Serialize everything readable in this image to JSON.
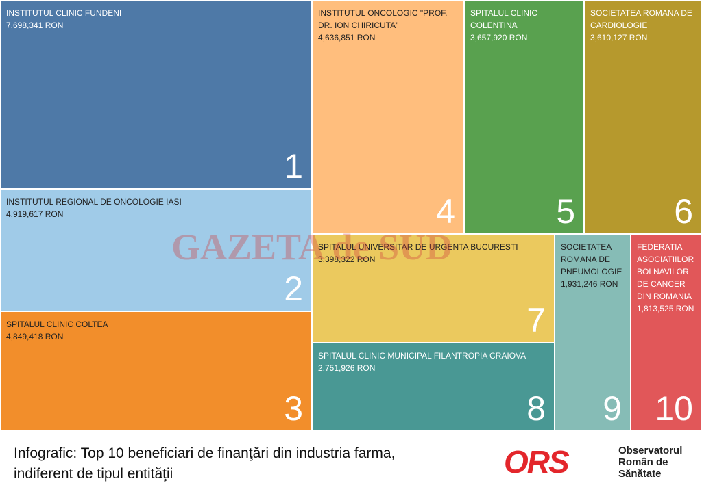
{
  "chart_data": {
    "type": "treemap",
    "categories": [
      "INSTITUTUL CLINIC FUNDENI",
      "INSTITUTUL REGIONAL DE ONCOLOGIE IASI",
      "SPITALUL CLINIC COLTEA",
      "INSTITUTUL ONCOLOGIC \"PROF. DR. ION CHIRICUTA\"",
      "SPITALUL CLINIC COLENTINA",
      "SOCIETATEA ROMANA DE CARDIOLOGIE",
      "SPITALUL UNIVERSITAR DE URGENTA BUCURESTI",
      "SPITALUL CLINIC MUNICIPAL FILANTROPIA CRAIOVA",
      "SOCIETATEA ROMANA DE PNEUMOLOGIE",
      "FEDERATIA ASOCIATIILOR BOLNAVILOR DE CANCER DIN ROMANIA"
    ],
    "values": [
      7698341,
      4919617,
      4849418,
      4636851,
      3657920,
      3610127,
      3398322,
      2751926,
      1931246,
      1813525
    ],
    "value_labels": [
      "7,698,341 RON",
      "4,919,617 RON",
      "4,849,418 RON",
      "4,636,851 RON",
      "3,657,920 RON",
      "3,610,127 RON",
      "3,398,322 RON",
      "2,751,926 RON",
      "1,931,246 RON",
      "1,813,525 RON"
    ],
    "ranks": [
      1,
      2,
      3,
      4,
      5,
      6,
      7,
      8,
      9,
      10
    ],
    "colors": [
      "#4e79a7",
      "#a0cbe8",
      "#f28e2b",
      "#ffbe7d",
      "#59a14f",
      "#b6992d",
      "#ebc95e",
      "#499894",
      "#86bcb6",
      "#e15759"
    ],
    "watermark": "GAZETA de SUD",
    "caption": "Infografic: Top 10 beneficiari de finanţări din industria farma, indiferent de tipul entităţii",
    "logo_mark": "ORS",
    "logo_text": [
      "Observatorul",
      "Român de",
      "Sănătate"
    ]
  }
}
